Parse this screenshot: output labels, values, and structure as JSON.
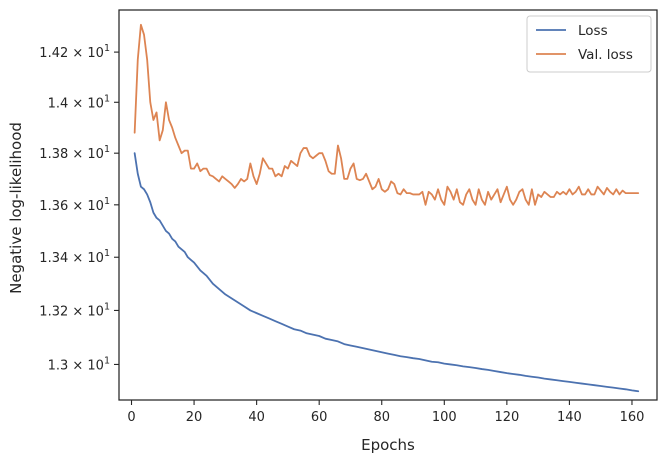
{
  "chart_data": {
    "type": "line",
    "title": "",
    "xlabel": "Epochs",
    "ylabel": "Negative log-likelihood",
    "y_scale": "log",
    "xlim": [
      -4,
      168
    ],
    "ylim": [
      12.87,
      14.37
    ],
    "x_ticks": [
      0,
      20,
      40,
      60,
      80,
      100,
      120,
      140,
      160
    ],
    "x_tick_labels": [
      "0",
      "20",
      "40",
      "60",
      "80",
      "100",
      "120",
      "140",
      "160"
    ],
    "y_ticks": [
      {
        "value": 13.0,
        "mantissa": "1.3",
        "exp": "1"
      },
      {
        "value": 13.2,
        "mantissa": "1.32",
        "exp": "1"
      },
      {
        "value": 13.4,
        "mantissa": "1.34",
        "exp": "1"
      },
      {
        "value": 13.6,
        "mantissa": "1.36",
        "exp": "1"
      },
      {
        "value": 13.8,
        "mantissa": "1.38",
        "exp": "1"
      },
      {
        "value": 14.0,
        "mantissa": "1.4",
        "exp": "1"
      },
      {
        "value": 14.2,
        "mantissa": "1.42",
        "exp": "1"
      }
    ],
    "y_tick_times": "× 10",
    "grid": false,
    "legend_position": "top-right",
    "series": [
      {
        "name": "Loss",
        "color": "#4c72b0",
        "points": [
          [
            1,
            13.8
          ],
          [
            2,
            13.72
          ],
          [
            3,
            13.67
          ],
          [
            4,
            13.66
          ],
          [
            5,
            13.64
          ],
          [
            6,
            13.61
          ],
          [
            7,
            13.57
          ],
          [
            8,
            13.55
          ],
          [
            9,
            13.54
          ],
          [
            10,
            13.52
          ],
          [
            11,
            13.5
          ],
          [
            12,
            13.49
          ],
          [
            13,
            13.47
          ],
          [
            14,
            13.46
          ],
          [
            15,
            13.44
          ],
          [
            16,
            13.43
          ],
          [
            17,
            13.42
          ],
          [
            18,
            13.4
          ],
          [
            19,
            13.39
          ],
          [
            20,
            13.38
          ],
          [
            22,
            13.35
          ],
          [
            24,
            13.33
          ],
          [
            26,
            13.3
          ],
          [
            28,
            13.28
          ],
          [
            30,
            13.26
          ],
          [
            32,
            13.245
          ],
          [
            34,
            13.23
          ],
          [
            36,
            13.215
          ],
          [
            38,
            13.2
          ],
          [
            40,
            13.19
          ],
          [
            42,
            13.18
          ],
          [
            44,
            13.17
          ],
          [
            46,
            13.16
          ],
          [
            48,
            13.15
          ],
          [
            50,
            13.14
          ],
          [
            52,
            13.13
          ],
          [
            54,
            13.125
          ],
          [
            56,
            13.115
          ],
          [
            58,
            13.11
          ],
          [
            60,
            13.105
          ],
          [
            62,
            13.095
          ],
          [
            64,
            13.09
          ],
          [
            66,
            13.085
          ],
          [
            68,
            13.075
          ],
          [
            70,
            13.07
          ],
          [
            72,
            13.065
          ],
          [
            74,
            13.06
          ],
          [
            76,
            13.055
          ],
          [
            78,
            13.05
          ],
          [
            80,
            13.045
          ],
          [
            82,
            13.04
          ],
          [
            84,
            13.035
          ],
          [
            86,
            13.03
          ],
          [
            88,
            13.027
          ],
          [
            90,
            13.023
          ],
          [
            92,
            13.02
          ],
          [
            94,
            13.015
          ],
          [
            96,
            13.01
          ],
          [
            98,
            13.008
          ],
          [
            100,
            13.003
          ],
          [
            102,
            13.0
          ],
          [
            104,
            12.997
          ],
          [
            106,
            12.993
          ],
          [
            108,
            12.99
          ],
          [
            110,
            12.987
          ],
          [
            112,
            12.983
          ],
          [
            114,
            12.98
          ],
          [
            116,
            12.976
          ],
          [
            118,
            12.972
          ],
          [
            120,
            12.968
          ],
          [
            122,
            12.965
          ],
          [
            124,
            12.962
          ],
          [
            126,
            12.958
          ],
          [
            128,
            12.955
          ],
          [
            130,
            12.952
          ],
          [
            132,
            12.948
          ],
          [
            134,
            12.945
          ],
          [
            136,
            12.942
          ],
          [
            138,
            12.939
          ],
          [
            140,
            12.936
          ],
          [
            142,
            12.933
          ],
          [
            144,
            12.93
          ],
          [
            146,
            12.927
          ],
          [
            148,
            12.924
          ],
          [
            150,
            12.921
          ],
          [
            152,
            12.918
          ],
          [
            154,
            12.915
          ],
          [
            156,
            12.912
          ],
          [
            158,
            12.909
          ],
          [
            160,
            12.905
          ],
          [
            162,
            12.902
          ]
        ]
      },
      {
        "name": "Val. loss",
        "color": "#dd8452",
        "points": [
          [
            1,
            13.88
          ],
          [
            2,
            14.17
          ],
          [
            3,
            14.31
          ],
          [
            4,
            14.27
          ],
          [
            5,
            14.17
          ],
          [
            6,
            14.0
          ],
          [
            7,
            13.93
          ],
          [
            8,
            13.96
          ],
          [
            9,
            13.85
          ],
          [
            10,
            13.89
          ],
          [
            11,
            14.0
          ],
          [
            12,
            13.93
          ],
          [
            13,
            13.9
          ],
          [
            14,
            13.86
          ],
          [
            15,
            13.83
          ],
          [
            16,
            13.8
          ],
          [
            17,
            13.81
          ],
          [
            18,
            13.81
          ],
          [
            19,
            13.74
          ],
          [
            20,
            13.74
          ],
          [
            21,
            13.76
          ],
          [
            22,
            13.73
          ],
          [
            23,
            13.74
          ],
          [
            24,
            13.74
          ],
          [
            25,
            13.715
          ],
          [
            26,
            13.71
          ],
          [
            27,
            13.7
          ],
          [
            28,
            13.69
          ],
          [
            29,
            13.71
          ],
          [
            30,
            13.7
          ],
          [
            31,
            13.69
          ],
          [
            32,
            13.68
          ],
          [
            33,
            13.665
          ],
          [
            34,
            13.68
          ],
          [
            35,
            13.7
          ],
          [
            36,
            13.69
          ],
          [
            37,
            13.7
          ],
          [
            38,
            13.76
          ],
          [
            39,
            13.71
          ],
          [
            40,
            13.68
          ],
          [
            41,
            13.72
          ],
          [
            42,
            13.78
          ],
          [
            43,
            13.76
          ],
          [
            44,
            13.74
          ],
          [
            45,
            13.74
          ],
          [
            46,
            13.71
          ],
          [
            47,
            13.72
          ],
          [
            48,
            13.71
          ],
          [
            49,
            13.75
          ],
          [
            50,
            13.74
          ],
          [
            51,
            13.77
          ],
          [
            52,
            13.76
          ],
          [
            53,
            13.75
          ],
          [
            54,
            13.8
          ],
          [
            55,
            13.82
          ],
          [
            56,
            13.82
          ],
          [
            57,
            13.79
          ],
          [
            58,
            13.78
          ],
          [
            59,
            13.79
          ],
          [
            60,
            13.8
          ],
          [
            61,
            13.8
          ],
          [
            62,
            13.77
          ],
          [
            63,
            13.73
          ],
          [
            64,
            13.72
          ],
          [
            65,
            13.72
          ],
          [
            66,
            13.83
          ],
          [
            67,
            13.78
          ],
          [
            68,
            13.7
          ],
          [
            69,
            13.7
          ],
          [
            70,
            13.74
          ],
          [
            71,
            13.76
          ],
          [
            72,
            13.7
          ],
          [
            73,
            13.695
          ],
          [
            74,
            13.7
          ],
          [
            75,
            13.72
          ],
          [
            76,
            13.69
          ],
          [
            77,
            13.66
          ],
          [
            78,
            13.67
          ],
          [
            79,
            13.7
          ],
          [
            80,
            13.66
          ],
          [
            81,
            13.65
          ],
          [
            82,
            13.66
          ],
          [
            83,
            13.69
          ],
          [
            84,
            13.68
          ],
          [
            85,
            13.645
          ],
          [
            86,
            13.64
          ],
          [
            87,
            13.66
          ],
          [
            88,
            13.645
          ],
          [
            89,
            13.645
          ],
          [
            90,
            13.64
          ],
          [
            92,
            13.64
          ],
          [
            93,
            13.65
          ],
          [
            94,
            13.6
          ],
          [
            95,
            13.65
          ],
          [
            96,
            13.64
          ],
          [
            97,
            13.62
          ],
          [
            98,
            13.66
          ],
          [
            99,
            13.62
          ],
          [
            100,
            13.6
          ],
          [
            101,
            13.67
          ],
          [
            102,
            13.65
          ],
          [
            103,
            13.62
          ],
          [
            104,
            13.66
          ],
          [
            105,
            13.61
          ],
          [
            106,
            13.6
          ],
          [
            107,
            13.64
          ],
          [
            108,
            13.66
          ],
          [
            109,
            13.62
          ],
          [
            110,
            13.6
          ],
          [
            111,
            13.66
          ],
          [
            112,
            13.62
          ],
          [
            113,
            13.6
          ],
          [
            114,
            13.65
          ],
          [
            115,
            13.62
          ],
          [
            116,
            13.64
          ],
          [
            117,
            13.66
          ],
          [
            118,
            13.61
          ],
          [
            119,
            13.64
          ],
          [
            120,
            13.67
          ],
          [
            121,
            13.62
          ],
          [
            122,
            13.6
          ],
          [
            123,
            13.62
          ],
          [
            124,
            13.65
          ],
          [
            125,
            13.66
          ],
          [
            126,
            13.62
          ],
          [
            127,
            13.6
          ],
          [
            128,
            13.66
          ],
          [
            129,
            13.6
          ],
          [
            130,
            13.64
          ],
          [
            131,
            13.63
          ],
          [
            132,
            13.65
          ],
          [
            133,
            13.64
          ],
          [
            134,
            13.63
          ],
          [
            135,
            13.63
          ],
          [
            136,
            13.65
          ],
          [
            137,
            13.64
          ],
          [
            138,
            13.65
          ],
          [
            139,
            13.64
          ],
          [
            140,
            13.66
          ],
          [
            141,
            13.64
          ],
          [
            142,
            13.65
          ],
          [
            143,
            13.67
          ],
          [
            144,
            13.64
          ],
          [
            145,
            13.64
          ],
          [
            146,
            13.66
          ],
          [
            147,
            13.64
          ],
          [
            148,
            13.64
          ],
          [
            149,
            13.67
          ],
          [
            150,
            13.655
          ],
          [
            151,
            13.64
          ],
          [
            152,
            13.665
          ],
          [
            153,
            13.65
          ],
          [
            154,
            13.64
          ],
          [
            155,
            13.66
          ],
          [
            156,
            13.64
          ],
          [
            157,
            13.655
          ],
          [
            158,
            13.645
          ],
          [
            159,
            13.645
          ],
          [
            160,
            13.645
          ],
          [
            161,
            13.645
          ],
          [
            162,
            13.645
          ]
        ]
      }
    ]
  }
}
